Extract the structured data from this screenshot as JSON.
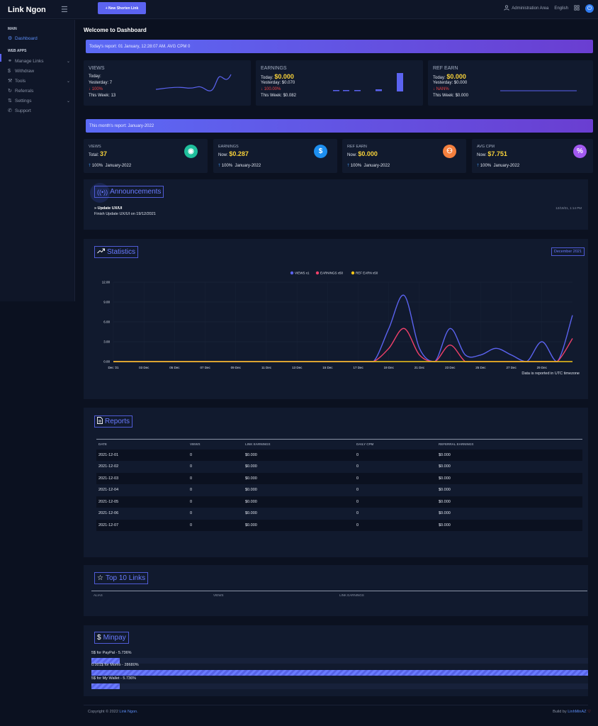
{
  "brand": "Link Ngon",
  "topbar": {
    "new_link_label": "+ New Shorten Link",
    "admin_label": "Administration Area",
    "language": "English"
  },
  "sidebar": {
    "main_head": "MAIN",
    "dashboard": "Dashboard",
    "webapps_head": "WEB APPS",
    "items": [
      {
        "label": "Manage Links",
        "icon": "link-icon",
        "chevron": true
      },
      {
        "label": "Withdraw",
        "icon": "dollar-icon",
        "chevron": false
      },
      {
        "label": "Tools",
        "icon": "tools-icon",
        "chevron": true
      },
      {
        "label": "Referrals",
        "icon": "refresh-icon",
        "chevron": false
      },
      {
        "label": "Settings",
        "icon": "settings-icon",
        "chevron": true
      },
      {
        "label": "Support",
        "icon": "phone-icon",
        "chevron": false
      }
    ]
  },
  "welcome": "Welcome to Dashboard",
  "today_banner": "Today's report: 01 January, 12:28:07 AM. AVG CPM 0",
  "today_cards": {
    "views": {
      "title": "VIEWS",
      "today": "Today:",
      "yesterday": "Yesterday: 7",
      "change": "↓ 100%",
      "week": "This Week: 13"
    },
    "earnings": {
      "title": "EARNINGS",
      "today_label": "Today:",
      "today_value": "$0.000",
      "yesterday": "Yesterday: $0.070",
      "change": "↓ 100.00%",
      "week": "This Week: $0.082"
    },
    "ref": {
      "title": "REF EARN",
      "today_label": "Today:",
      "today_value": "$0.000",
      "yesterday": "Yesterday: $0.000",
      "change": "↓ NAN%",
      "week": "This Week: $0.000"
    }
  },
  "month_banner": "This month's report: January-2022",
  "month_cards": [
    {
      "title": "VIEWS",
      "label": "Total:",
      "value": "37",
      "change": "100%",
      "period": "January-2022",
      "icon": "eye-icon",
      "color": "#1fbf9c",
      "glyph": "◉"
    },
    {
      "title": "EARNINGS",
      "label": "Now:",
      "value": "$0.287",
      "change": "100%",
      "period": "January-2022",
      "icon": "dollar-icon",
      "color": "#1d8ff0",
      "glyph": "$"
    },
    {
      "title": "REF EARN",
      "label": "Now:",
      "value": "$0.000",
      "change": "100%",
      "period": "January-2022",
      "icon": "users-icon",
      "color": "#f5803e",
      "glyph": "⚇"
    },
    {
      "title": "AVG CPM",
      "label": "Now:",
      "value": "$7.751",
      "change": "100%",
      "period": "January-2022",
      "icon": "percent-icon",
      "color": "#a259f0",
      "glyph": "%"
    }
  ],
  "announcements": {
    "title": "Announcements",
    "item_title": "Update UX/UI",
    "item_body": "Finish Update UX/UI on 19/12/2021",
    "item_date": "12/19/21, 1:14 PM"
  },
  "statistics": {
    "title": "Statistics",
    "month_badge": "December 2021",
    "note": "Data is reported in UTC timezone"
  },
  "chart_data": {
    "type": "line",
    "x": [
      "Dec '21",
      "02 Dec",
      "03 Dec",
      "04 Dec",
      "05 Dec",
      "06 Dec",
      "07 Dec",
      "08 Dec",
      "09 Dec",
      "10 Dec",
      "11 Dec",
      "12 Dec",
      "13 Dec",
      "14 Dec",
      "15 Dec",
      "16 Dec",
      "17 Dec",
      "18 Dec",
      "19 Dec",
      "20 Dec",
      "21 Dec",
      "22 Dec",
      "23 Dec",
      "24 Dec",
      "25 Dec",
      "26 Dec",
      "27 Dec",
      "28 Dec",
      "29 Dec",
      "30 Dec",
      "31 Dec"
    ],
    "tick_labels": [
      "Dec '21",
      "03 Dec",
      "05 Dec",
      "07 Dec",
      "09 Dec",
      "11 Dec",
      "13 Dec",
      "15 Dec",
      "17 Dec",
      "19 Dec",
      "21 Dec",
      "23 Dec",
      "25 Dec",
      "27 Dec",
      "29 Dec"
    ],
    "series": [
      {
        "name": "VIEWS x1",
        "color": "#5b63f0",
        "values": [
          0,
          0,
          0,
          0,
          0,
          0,
          0,
          0,
          0,
          0,
          0,
          0,
          0,
          0,
          0,
          0,
          0,
          0,
          5,
          10,
          2,
          0,
          5,
          1,
          1,
          2,
          1,
          0,
          3,
          0,
          7
        ]
      },
      {
        "name": "EARNINGS x50",
        "color": "#f0406a",
        "values": [
          0,
          0,
          0,
          0,
          0,
          0,
          0,
          0,
          0,
          0,
          0,
          0,
          0,
          0,
          0,
          0,
          0,
          0,
          2,
          5,
          1,
          0,
          2.5,
          0,
          0,
          0,
          0,
          0,
          0,
          0,
          3.5
        ]
      },
      {
        "name": "REF EARN x50",
        "color": "#f5c518",
        "values": [
          0,
          0,
          0,
          0,
          0,
          0,
          0,
          0,
          0,
          0,
          0,
          0,
          0,
          0,
          0,
          0,
          0,
          0,
          0,
          0,
          0,
          0,
          0,
          0,
          0,
          0,
          0,
          0,
          0,
          0,
          0
        ]
      }
    ],
    "y_ticks": [
      "0.00",
      "3.00",
      "6.00",
      "9.00",
      "12.00"
    ],
    "ylim": [
      0,
      12
    ],
    "legend": "top-center",
    "grid": true
  },
  "reports": {
    "title": "Reports",
    "headers": [
      "DATE",
      "VIEWS",
      "LINK EARNINGS",
      "DAILY CPM",
      "REFERRAL EARNINGS"
    ],
    "rows": [
      [
        "2021-12-01",
        "0",
        "$0.000",
        "0",
        "$0.000"
      ],
      [
        "2021-12-02",
        "0",
        "$0.000",
        "0",
        "$0.000"
      ],
      [
        "2021-12-03",
        "0",
        "$0.000",
        "0",
        "$0.000"
      ],
      [
        "2021-12-04",
        "0",
        "$0.000",
        "0",
        "$0.000"
      ],
      [
        "2021-12-05",
        "0",
        "$0.000",
        "0",
        "$0.000"
      ],
      [
        "2021-12-06",
        "0",
        "$0.000",
        "0",
        "$0.000"
      ],
      [
        "2021-12-07",
        "0",
        "$0.000",
        "0",
        "$0.000"
      ]
    ]
  },
  "top_links": {
    "title": "Top 10 Links",
    "headers": [
      "ALIAS",
      "VIEWS",
      "LINK EARNINGS"
    ]
  },
  "minpay": {
    "title": "Minpay",
    "items": [
      {
        "label": "5$ for PayPal - 5.736%",
        "percent": 5.736
      },
      {
        "label": "0.001$ for Momo - 28680%",
        "percent": 100
      },
      {
        "label": "5$ for My Wallet - 5.736%",
        "percent": 5.736
      }
    ]
  },
  "footer": {
    "copyright_prefix": "Copyright © 2022 ",
    "copyright_link": "Link Ngon.",
    "build_prefix": "Build by ",
    "build_link": "LinhMinAZ",
    "heart": "♡"
  }
}
